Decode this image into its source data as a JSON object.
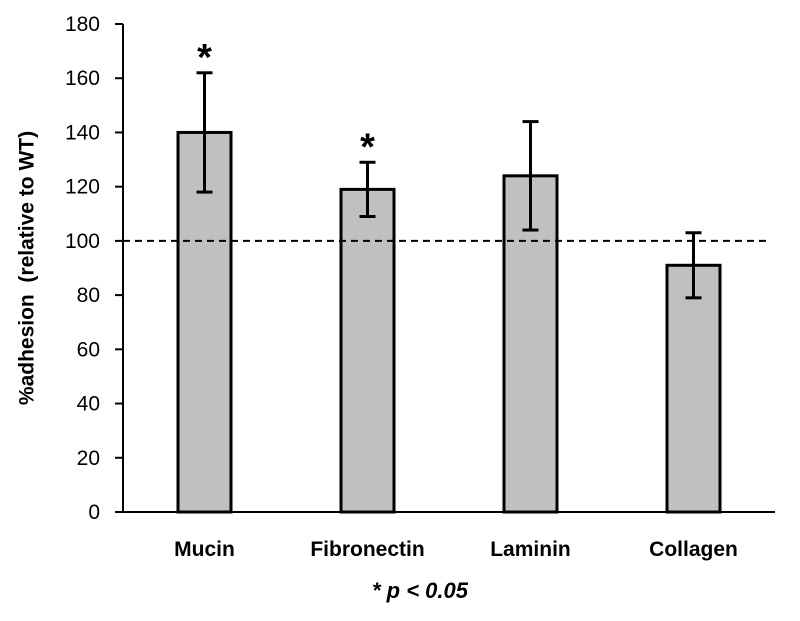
{
  "chart_data": {
    "type": "bar",
    "categories": [
      "Mucin",
      "Fibronectin",
      "Laminin",
      "Collagen"
    ],
    "values": [
      140,
      119,
      124,
      91
    ],
    "error": [
      22,
      10,
      20,
      12
    ],
    "significance": [
      "*",
      "*",
      "",
      ""
    ],
    "ylabel": "%adhesion  (relative to WT)",
    "xlabel": "",
    "ylim": [
      0,
      180
    ],
    "yticks": [
      0,
      20,
      40,
      60,
      80,
      100,
      120,
      140,
      160,
      180
    ],
    "reference_line": 100,
    "footnote": "* p < 0.05",
    "grid": false,
    "colors": {
      "bar_fill": "#c0c0c0",
      "bar_stroke": "#000000",
      "reference_line": "#000000"
    }
  }
}
